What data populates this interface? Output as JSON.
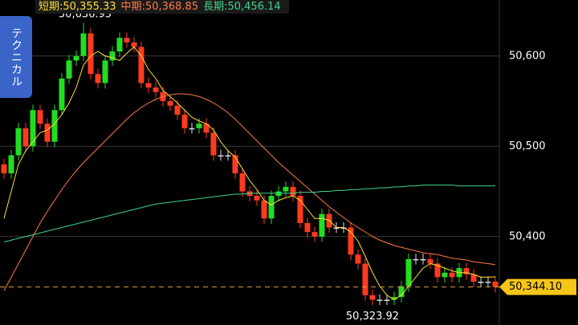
{
  "chart_data": {
    "type": "candlestick",
    "button": "テクニカル",
    "ylim": [
      50302,
      50662
    ],
    "yticks": [
      {
        "value": 50400,
        "label": "50,400"
      },
      {
        "value": 50500,
        "label": "50,500"
      },
      {
        "value": 50600,
        "label": "50,600"
      }
    ],
    "grid": true,
    "up_color": "#22dd22",
    "down_color": "#ff3b1f",
    "high_label": "50,636.95",
    "low_label": "50,323.92",
    "last_label": "50,344.10",
    "open": [
      50480,
      50470,
      50490,
      50520,
      50500,
      50540,
      50525,
      50505,
      50540,
      50575,
      50595,
      50600,
      50625,
      50580,
      50570,
      50595,
      50605,
      50620,
      50615,
      50610,
      50570,
      50565,
      50560,
      50550,
      50545,
      50535,
      50520,
      50520,
      50525,
      50515,
      50490,
      50490,
      50490,
      50470,
      50450,
      50445,
      50440,
      50420,
      50445,
      50450,
      50455,
      50445,
      50415,
      50405,
      50400,
      50425,
      50410,
      50410,
      50410,
      50380,
      50370,
      50335,
      50330,
      50330,
      50330,
      50333,
      50345,
      50375,
      50375,
      50375,
      50370,
      50355,
      50360,
      50355,
      50365,
      50358,
      50350,
      50350,
      50350
    ],
    "high": [
      50486,
      50496,
      50526,
      50526,
      50546,
      50546,
      50531,
      50546,
      50581,
      50601,
      50606,
      50636.95,
      50631,
      50586,
      50601,
      50611,
      50626,
      50626,
      50621,
      50616,
      50576,
      50571,
      50566,
      50556,
      50551,
      50541,
      50526,
      50531,
      50531,
      50521,
      50496,
      50496,
      50496,
      50476,
      50456,
      50451,
      50446,
      50451,
      50456,
      50461,
      50461,
      50451,
      50421,
      50411,
      50431,
      50431,
      50416,
      50416,
      50416,
      50386,
      50376,
      50341,
      50336,
      50336,
      50339,
      50351,
      50381,
      50381,
      50381,
      50381,
      50376,
      50366,
      50366,
      50371,
      50371,
      50364,
      50356,
      50356,
      50356
    ],
    "low": [
      50464,
      50464,
      50484,
      50494,
      50494,
      50519,
      50499,
      50499,
      50534,
      50569,
      50589,
      50594,
      50574,
      50564,
      50564,
      50589,
      50599,
      50609,
      50604,
      50564,
      50559,
      50554,
      50544,
      50539,
      50529,
      50514,
      50514,
      50514,
      50509,
      50484,
      50484,
      50484,
      50464,
      50444,
      50439,
      50434,
      50414,
      50414,
      50439,
      50444,
      50439,
      50409,
      50399,
      50394,
      50394,
      50404,
      50404,
      50404,
      50374,
      50364,
      50329,
      50323.92,
      50324,
      50324,
      50324,
      50327,
      50339,
      50369,
      50369,
      50364,
      50349,
      50349,
      50349,
      50349,
      50352,
      50344,
      50344,
      50344,
      50338
    ],
    "close": [
      50470,
      50490,
      50520,
      50500,
      50540,
      50525,
      50505,
      50540,
      50575,
      50595,
      50600,
      50625,
      50580,
      50570,
      50595,
      50605,
      50620,
      50615,
      50610,
      50570,
      50565,
      50560,
      50550,
      50545,
      50535,
      50520,
      50520,
      50525,
      50515,
      50490,
      50490,
      50490,
      50470,
      50450,
      50445,
      50440,
      50420,
      50445,
      50450,
      50455,
      50445,
      50415,
      50405,
      50400,
      50425,
      50410,
      50410,
      50410,
      50380,
      50370,
      50335,
      50330,
      50330,
      50330,
      50333,
      50345,
      50375,
      50375,
      50375,
      50370,
      50355,
      50360,
      50355,
      50365,
      50358,
      50350,
      50350,
      50350,
      50344.1
    ],
    "series": [
      {
        "name": "短期:50,355.33",
        "color": "#ffe033",
        "values": [
          50420,
          50450,
          50480,
          50495,
          50505,
          50515,
          50518,
          50525,
          50535,
          50548,
          50565,
          50590,
          50600,
          50605,
          50600,
          50598,
          50595,
          50603,
          50610,
          50600,
          50585,
          50575,
          50562,
          50555,
          50548,
          50540,
          50532,
          50528,
          50525,
          50518,
          50505,
          50495,
          50488,
          50475,
          50462,
          50452,
          50440,
          50435,
          50440,
          50443,
          50445,
          50440,
          50430,
          50420,
          50420,
          50418,
          50410,
          50410,
          50405,
          50395,
          50378,
          50360,
          50345,
          50335,
          50330,
          50335,
          50345,
          50355,
          50365,
          50370,
          50368,
          50365,
          50362,
          50360,
          50360,
          50358,
          50355,
          50355,
          50355.33
        ]
      },
      {
        "name": "中期:50,368.85",
        "color": "#ff7a45",
        "values": [
          50340,
          50355,
          50370,
          50385,
          50400,
          50415,
          50428,
          50440,
          50452,
          50463,
          50473,
          50482,
          50490,
          50498,
          50506,
          50514,
          50522,
          50530,
          50537,
          50543,
          50548,
          50552,
          50555,
          50557,
          50558,
          50558,
          50557,
          50555,
          50552,
          50548,
          50543,
          50537,
          50530,
          50522,
          50514,
          50506,
          50498,
          50490,
          50482,
          50475,
          50468,
          50461,
          50454,
          50447,
          50440,
          50433,
          50427,
          50421,
          50415,
          50410,
          50405,
          50400,
          50396,
          50393,
          50390,
          50388,
          50386,
          50384,
          50382,
          50381,
          50380,
          50378,
          50376,
          50375,
          50374,
          50372,
          50371,
          50370,
          50368.85
        ]
      },
      {
        "name": "長期:50,456.14",
        "color": "#3fd68a",
        "values": [
          50394,
          50396,
          50398,
          50400,
          50402,
          50404,
          50406,
          50408,
          50410,
          50412,
          50414,
          50416,
          50418,
          50420,
          50422,
          50424,
          50426,
          50428,
          50430,
          50432,
          50434,
          50436,
          50437,
          50438,
          50439,
          50440,
          50441,
          50442,
          50443,
          50444,
          50445,
          50446,
          50447,
          50447,
          50448,
          50448,
          50448,
          50448,
          50448,
          50448,
          50448,
          50449,
          50449,
          50449,
          50450,
          50450,
          50451,
          50451,
          50452,
          50452,
          50453,
          50453,
          50454,
          50454,
          50455,
          50455,
          50456,
          50456,
          50457,
          50457,
          50457,
          50457,
          50457,
          50456,
          50456,
          50456,
          50456,
          50456,
          50456.14
        ]
      }
    ]
  }
}
